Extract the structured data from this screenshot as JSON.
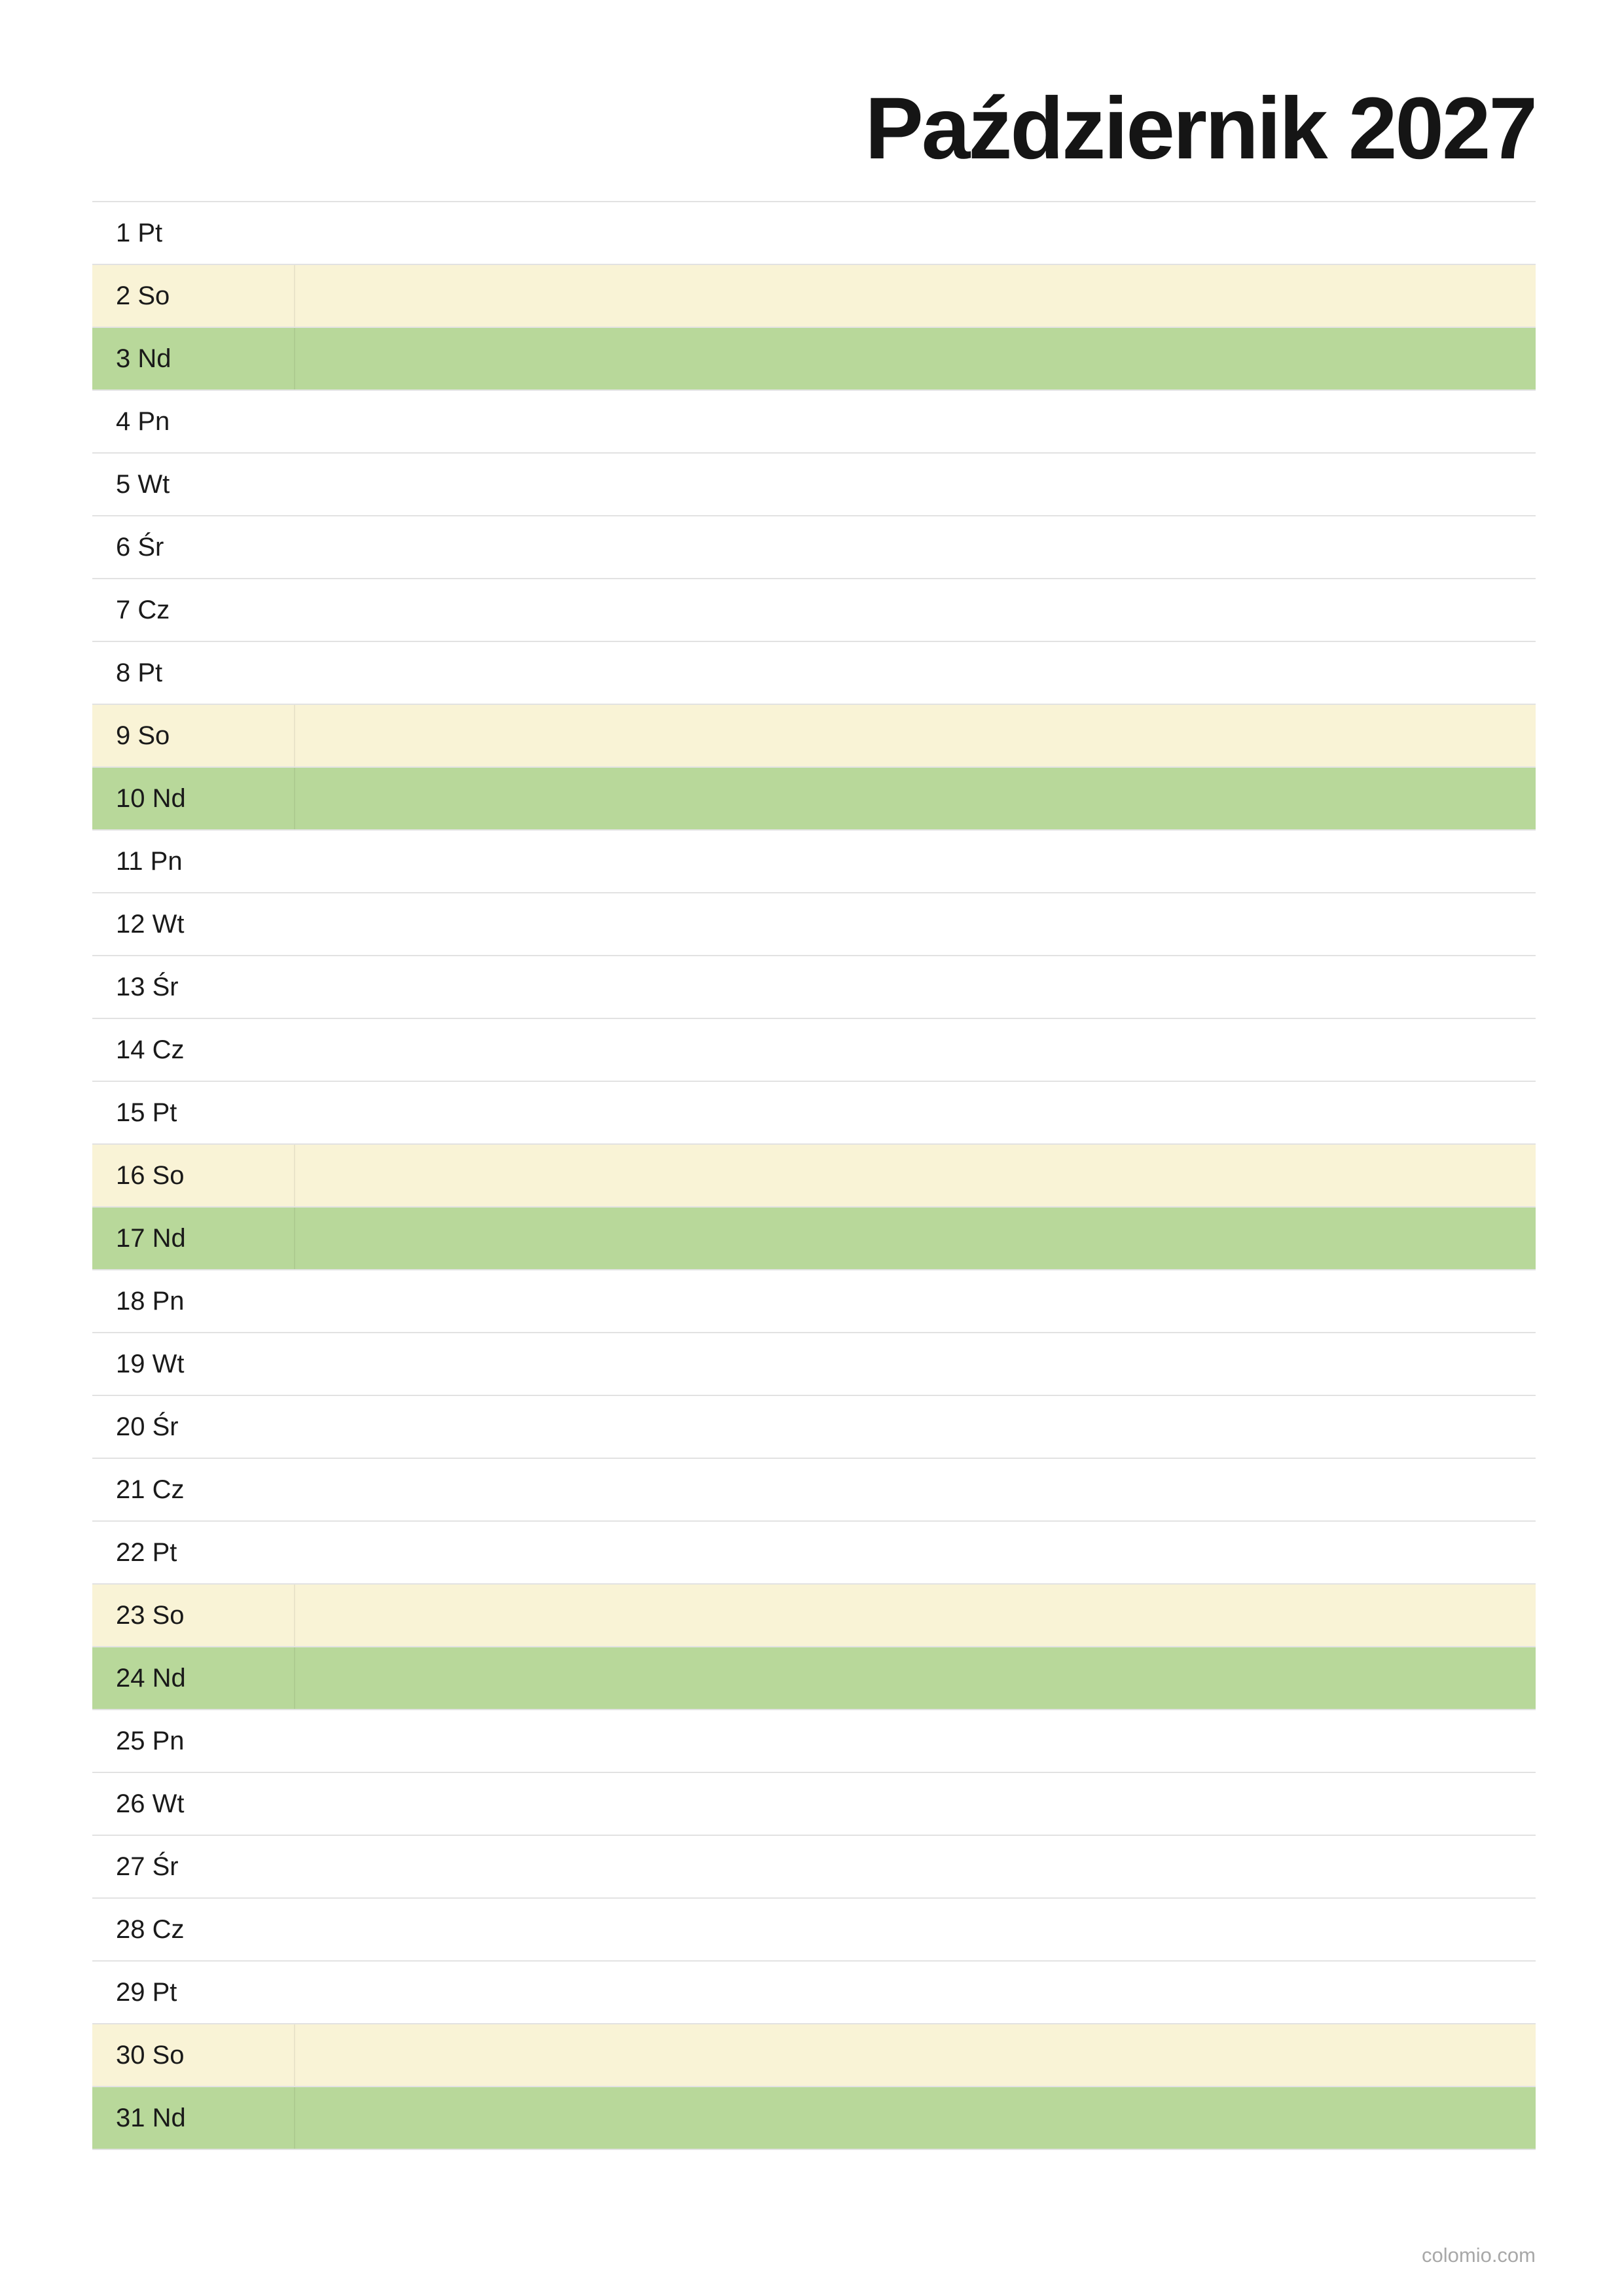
{
  "header": {
    "title": "Październik 2027"
  },
  "table": {
    "rows": [
      {
        "label": "1 Pt"
      },
      {
        "label": "2 So",
        "color": "#f9f3d6"
      },
      {
        "label": "3 Nd",
        "color": "#b8d89a"
      },
      {
        "label": "4 Pn"
      },
      {
        "label": "5 Wt"
      },
      {
        "label": "6 Śr"
      },
      {
        "label": "7 Cz"
      },
      {
        "label": "8 Pt"
      },
      {
        "label": "9 So",
        "color": "#f9f3d6"
      },
      {
        "label": "10 Nd",
        "color": "#b8d89a"
      },
      {
        "label": "11 Pn"
      },
      {
        "label": "12 Wt"
      },
      {
        "label": "13 Śr"
      },
      {
        "label": "14 Cz"
      },
      {
        "label": "15 Pt"
      },
      {
        "label": "16 So",
        "color": "#f9f3d6"
      },
      {
        "label": "17 Nd",
        "color": "#b8d89a"
      },
      {
        "label": "18 Pn"
      },
      {
        "label": "19 Wt"
      },
      {
        "label": "20 Śr"
      },
      {
        "label": "21 Cz"
      },
      {
        "label": "22 Pt"
      },
      {
        "label": "23 So",
        "color": "#f9f3d6"
      },
      {
        "label": "24 Nd",
        "color": "#b8d89a"
      },
      {
        "label": "25 Pn"
      },
      {
        "label": "26 Wt"
      },
      {
        "label": "27 Śr"
      },
      {
        "label": "28 Cz"
      },
      {
        "label": "29 Pt"
      },
      {
        "label": "30 So",
        "color": "#f9f3d6"
      },
      {
        "label": "31 Nd",
        "color": "#b8d89a"
      }
    ]
  },
  "footer": {
    "text": "colomio.com"
  }
}
